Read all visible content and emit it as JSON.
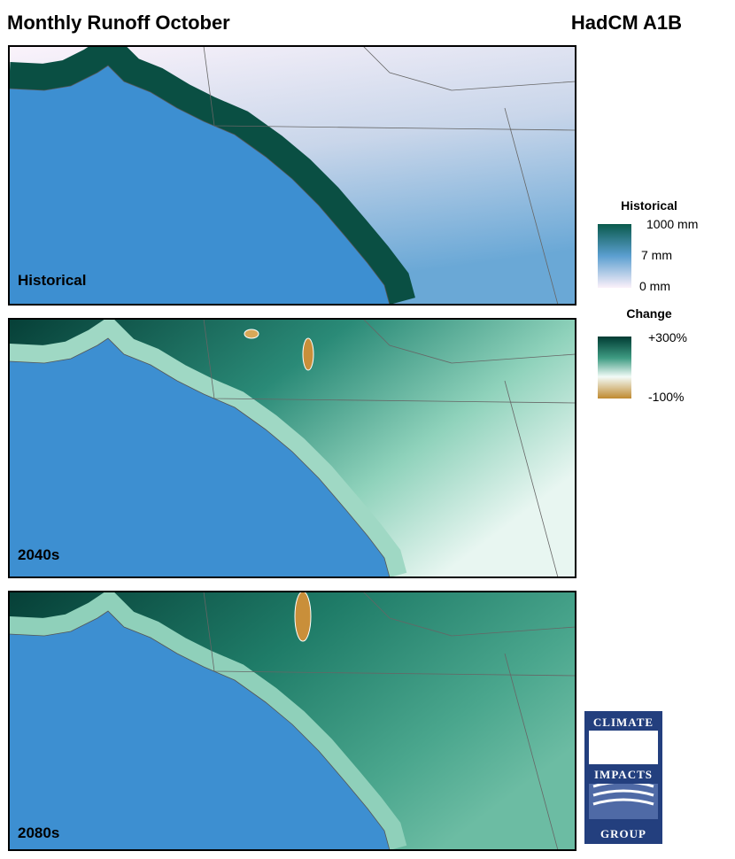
{
  "header": {
    "title": "Monthly Runoff October",
    "scenario": "HadCM A1B"
  },
  "panels": [
    {
      "label": "Historical"
    },
    {
      "label": "2040s"
    },
    {
      "label": "2080s"
    }
  ],
  "legend": {
    "historical": {
      "title": "Historical",
      "labels": [
        "1000 mm",
        "7 mm",
        "0 mm"
      ]
    },
    "change": {
      "title": "Change",
      "labels": [
        "+300%",
        "-100%"
      ]
    }
  },
  "logo": {
    "top": "CLIMATE",
    "middle": "IMPACTS",
    "bottom": "GROUP"
  }
}
